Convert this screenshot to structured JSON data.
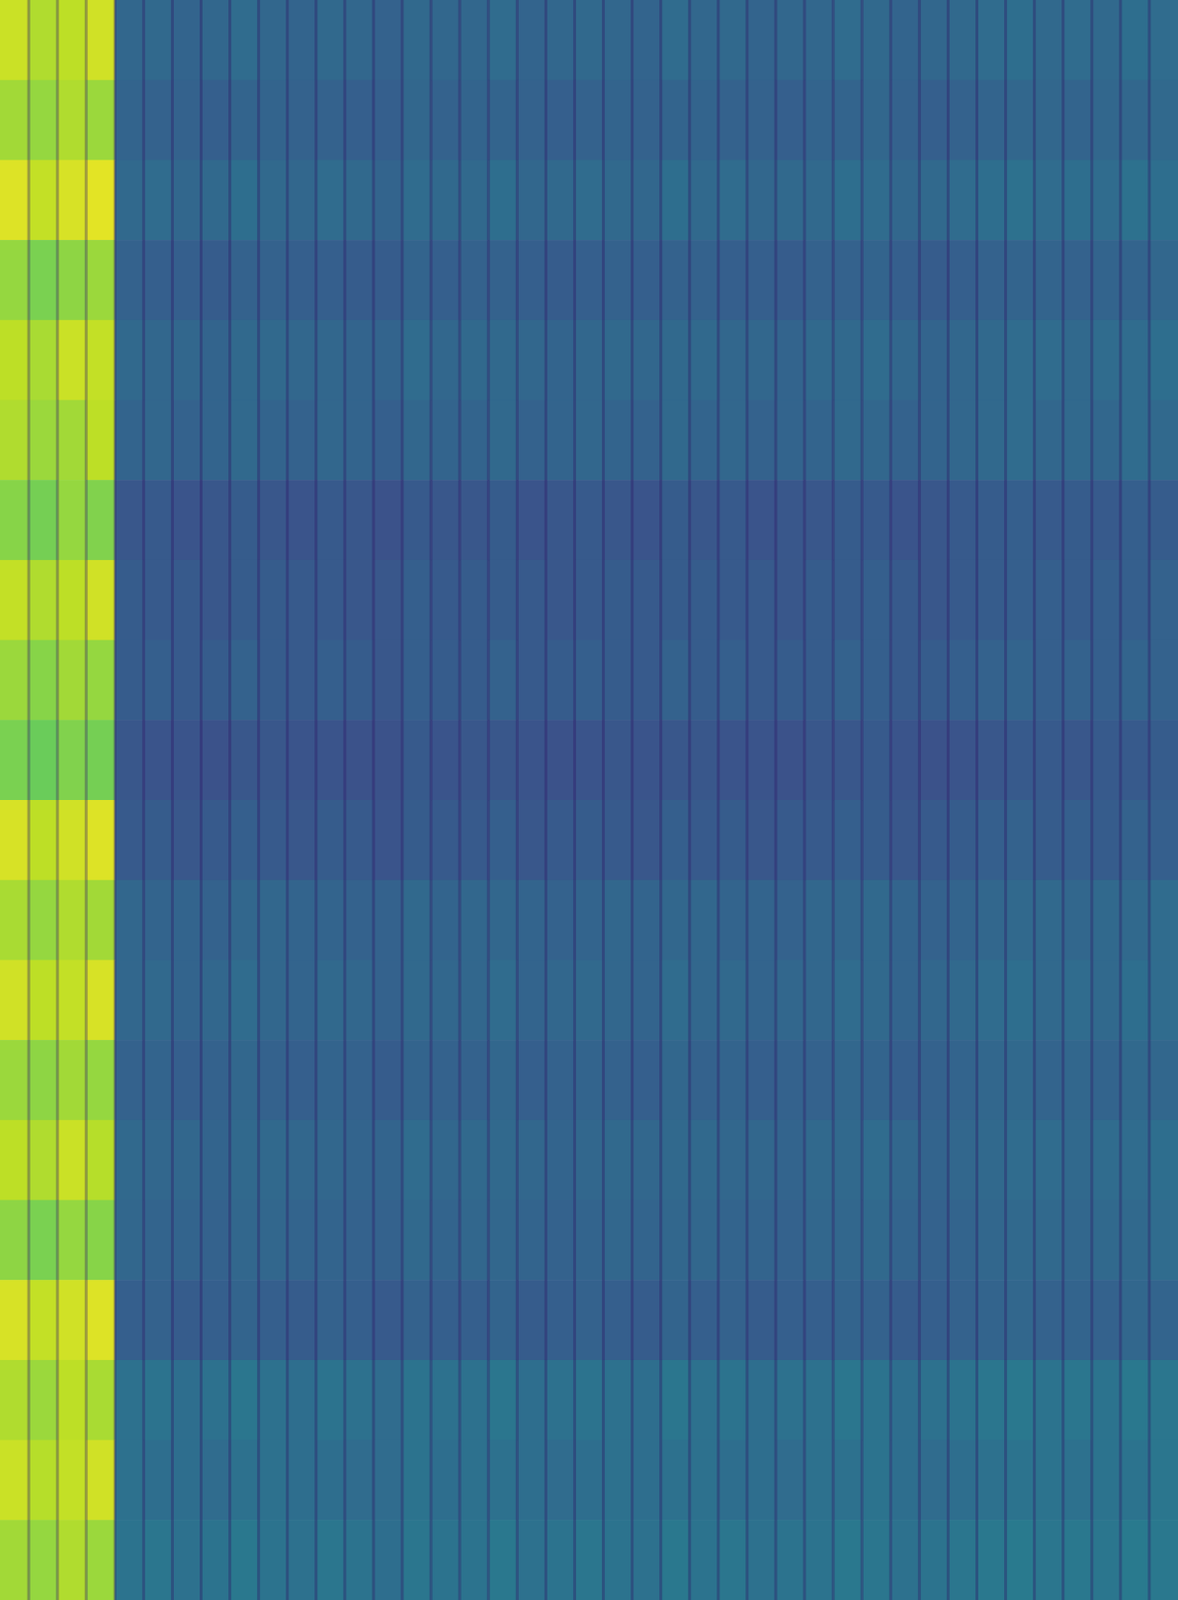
{
  "chart_data": {
    "type": "heatmap",
    "tick_labels": false,
    "zlim": [
      0,
      1
    ],
    "values": [
      [
        0.92,
        0.88,
        0.9,
        0.93,
        0.33,
        0.34,
        0.32,
        0.33,
        0.35,
        0.33,
        0.32,
        0.34,
        0.33,
        0.31,
        0.34,
        0.33,
        0.33,
        0.35,
        0.32,
        0.33,
        0.34,
        0.33,
        0.32,
        0.35,
        0.33,
        0.34,
        0.32,
        0.33,
        0.33,
        0.35,
        0.34,
        0.32,
        0.33,
        0.34,
        0.35,
        0.36,
        0.34,
        0.35,
        0.34,
        0.36,
        0.35
      ],
      [
        0.86,
        0.84,
        0.88,
        0.85,
        0.32,
        0.31,
        0.31,
        0.3,
        0.32,
        0.32,
        0.31,
        0.31,
        0.3,
        0.3,
        0.33,
        0.31,
        0.32,
        0.32,
        0.31,
        0.3,
        0.31,
        0.32,
        0.31,
        0.32,
        0.32,
        0.31,
        0.31,
        0.3,
        0.32,
        0.32,
        0.33,
        0.31,
        0.3,
        0.31,
        0.32,
        0.33,
        0.33,
        0.32,
        0.33,
        0.33,
        0.34
      ],
      [
        0.95,
        0.91,
        0.94,
        0.96,
        0.34,
        0.35,
        0.33,
        0.34,
        0.36,
        0.34,
        0.33,
        0.35,
        0.34,
        0.32,
        0.35,
        0.34,
        0.34,
        0.36,
        0.33,
        0.34,
        0.35,
        0.34,
        0.33,
        0.36,
        0.34,
        0.35,
        0.33,
        0.34,
        0.34,
        0.36,
        0.35,
        0.33,
        0.34,
        0.35,
        0.36,
        0.37,
        0.35,
        0.36,
        0.35,
        0.37,
        0.36
      ],
      [
        0.84,
        0.8,
        0.83,
        0.85,
        0.31,
        0.3,
        0.3,
        0.29,
        0.31,
        0.31,
        0.3,
        0.3,
        0.29,
        0.29,
        0.32,
        0.3,
        0.31,
        0.31,
        0.3,
        0.29,
        0.3,
        0.31,
        0.3,
        0.31,
        0.31,
        0.3,
        0.3,
        0.29,
        0.31,
        0.31,
        0.32,
        0.3,
        0.29,
        0.3,
        0.31,
        0.32,
        0.32,
        0.31,
        0.32,
        0.32,
        0.33
      ],
      [
        0.9,
        0.87,
        0.92,
        0.91,
        0.34,
        0.33,
        0.33,
        0.32,
        0.34,
        0.34,
        0.33,
        0.33,
        0.32,
        0.32,
        0.35,
        0.33,
        0.34,
        0.34,
        0.33,
        0.32,
        0.33,
        0.34,
        0.33,
        0.34,
        0.34,
        0.33,
        0.33,
        0.32,
        0.34,
        0.34,
        0.35,
        0.33,
        0.32,
        0.33,
        0.34,
        0.35,
        0.35,
        0.34,
        0.35,
        0.35,
        0.36
      ],
      [
        0.88,
        0.85,
        0.86,
        0.9,
        0.32,
        0.33,
        0.31,
        0.32,
        0.34,
        0.32,
        0.31,
        0.33,
        0.32,
        0.3,
        0.33,
        0.32,
        0.32,
        0.34,
        0.31,
        0.32,
        0.33,
        0.32,
        0.31,
        0.34,
        0.32,
        0.33,
        0.31,
        0.32,
        0.32,
        0.34,
        0.33,
        0.31,
        0.32,
        0.33,
        0.34,
        0.35,
        0.33,
        0.34,
        0.33,
        0.35,
        0.34
      ],
      [
        0.82,
        0.79,
        0.84,
        0.81,
        0.27,
        0.28,
        0.26,
        0.27,
        0.29,
        0.27,
        0.26,
        0.28,
        0.27,
        0.25,
        0.28,
        0.27,
        0.27,
        0.29,
        0.26,
        0.27,
        0.28,
        0.27,
        0.26,
        0.29,
        0.27,
        0.28,
        0.26,
        0.27,
        0.27,
        0.29,
        0.28,
        0.26,
        0.27,
        0.28,
        0.29,
        0.3,
        0.28,
        0.29,
        0.28,
        0.3,
        0.29
      ],
      [
        0.91,
        0.88,
        0.9,
        0.93,
        0.29,
        0.28,
        0.28,
        0.27,
        0.29,
        0.29,
        0.28,
        0.28,
        0.27,
        0.27,
        0.3,
        0.28,
        0.29,
        0.29,
        0.28,
        0.27,
        0.28,
        0.29,
        0.28,
        0.29,
        0.29,
        0.28,
        0.28,
        0.27,
        0.29,
        0.29,
        0.3,
        0.28,
        0.27,
        0.28,
        0.29,
        0.3,
        0.3,
        0.29,
        0.3,
        0.3,
        0.31
      ],
      [
        0.85,
        0.82,
        0.86,
        0.84,
        0.29,
        0.3,
        0.28,
        0.29,
        0.31,
        0.29,
        0.28,
        0.3,
        0.29,
        0.27,
        0.3,
        0.29,
        0.29,
        0.31,
        0.28,
        0.29,
        0.3,
        0.29,
        0.28,
        0.31,
        0.29,
        0.3,
        0.28,
        0.29,
        0.29,
        0.31,
        0.3,
        0.28,
        0.29,
        0.3,
        0.31,
        0.32,
        0.3,
        0.31,
        0.3,
        0.32,
        0.31
      ],
      [
        0.8,
        0.77,
        0.81,
        0.79,
        0.27,
        0.26,
        0.26,
        0.25,
        0.27,
        0.27,
        0.26,
        0.26,
        0.25,
        0.25,
        0.28,
        0.26,
        0.27,
        0.27,
        0.26,
        0.25,
        0.26,
        0.27,
        0.26,
        0.27,
        0.27,
        0.26,
        0.26,
        0.25,
        0.27,
        0.27,
        0.28,
        0.26,
        0.25,
        0.26,
        0.27,
        0.28,
        0.28,
        0.27,
        0.28,
        0.28,
        0.29
      ],
      [
        0.94,
        0.9,
        0.93,
        0.95,
        0.28,
        0.29,
        0.27,
        0.28,
        0.3,
        0.28,
        0.27,
        0.29,
        0.28,
        0.26,
        0.29,
        0.28,
        0.28,
        0.3,
        0.27,
        0.28,
        0.29,
        0.28,
        0.27,
        0.3,
        0.28,
        0.29,
        0.27,
        0.28,
        0.28,
        0.3,
        0.29,
        0.27,
        0.28,
        0.29,
        0.3,
        0.31,
        0.29,
        0.3,
        0.29,
        0.31,
        0.3
      ],
      [
        0.87,
        0.84,
        0.88,
        0.86,
        0.33,
        0.32,
        0.32,
        0.31,
        0.33,
        0.33,
        0.32,
        0.32,
        0.31,
        0.31,
        0.34,
        0.32,
        0.33,
        0.33,
        0.32,
        0.31,
        0.32,
        0.33,
        0.32,
        0.33,
        0.33,
        0.32,
        0.32,
        0.31,
        0.33,
        0.33,
        0.34,
        0.32,
        0.31,
        0.32,
        0.33,
        0.34,
        0.34,
        0.33,
        0.34,
        0.34,
        0.35
      ],
      [
        0.93,
        0.9,
        0.91,
        0.94,
        0.33,
        0.34,
        0.32,
        0.33,
        0.35,
        0.33,
        0.32,
        0.34,
        0.33,
        0.31,
        0.34,
        0.33,
        0.33,
        0.35,
        0.32,
        0.33,
        0.34,
        0.33,
        0.32,
        0.35,
        0.33,
        0.34,
        0.32,
        0.33,
        0.33,
        0.35,
        0.34,
        0.32,
        0.33,
        0.34,
        0.35,
        0.36,
        0.34,
        0.35,
        0.34,
        0.36,
        0.35
      ],
      [
        0.85,
        0.83,
        0.86,
        0.84,
        0.31,
        0.32,
        0.3,
        0.31,
        0.33,
        0.31,
        0.3,
        0.32,
        0.31,
        0.29,
        0.32,
        0.31,
        0.31,
        0.33,
        0.3,
        0.31,
        0.32,
        0.31,
        0.3,
        0.33,
        0.31,
        0.32,
        0.3,
        0.31,
        0.31,
        0.33,
        0.32,
        0.3,
        0.31,
        0.32,
        0.33,
        0.34,
        0.32,
        0.33,
        0.32,
        0.34,
        0.33
      ],
      [
        0.9,
        0.88,
        0.92,
        0.89,
        0.34,
        0.33,
        0.33,
        0.32,
        0.34,
        0.34,
        0.33,
        0.33,
        0.32,
        0.32,
        0.35,
        0.33,
        0.34,
        0.34,
        0.33,
        0.32,
        0.33,
        0.34,
        0.33,
        0.34,
        0.34,
        0.33,
        0.33,
        0.32,
        0.34,
        0.34,
        0.35,
        0.33,
        0.32,
        0.33,
        0.34,
        0.35,
        0.35,
        0.34,
        0.35,
        0.35,
        0.36
      ],
      [
        0.83,
        0.8,
        0.84,
        0.82,
        0.33,
        0.32,
        0.32,
        0.31,
        0.33,
        0.33,
        0.32,
        0.32,
        0.31,
        0.31,
        0.34,
        0.32,
        0.33,
        0.33,
        0.32,
        0.31,
        0.32,
        0.33,
        0.32,
        0.33,
        0.33,
        0.32,
        0.32,
        0.31,
        0.33,
        0.33,
        0.34,
        0.32,
        0.31,
        0.32,
        0.33,
        0.34,
        0.34,
        0.33,
        0.34,
        0.34,
        0.35
      ],
      [
        0.94,
        0.91,
        0.93,
        0.95,
        0.3,
        0.31,
        0.29,
        0.3,
        0.32,
        0.3,
        0.29,
        0.31,
        0.3,
        0.28,
        0.31,
        0.3,
        0.3,
        0.32,
        0.29,
        0.3,
        0.31,
        0.3,
        0.29,
        0.32,
        0.3,
        0.31,
        0.29,
        0.3,
        0.3,
        0.32,
        0.31,
        0.29,
        0.3,
        0.31,
        0.32,
        0.33,
        0.31,
        0.32,
        0.31,
        0.33,
        0.32
      ],
      [
        0.88,
        0.85,
        0.9,
        0.87,
        0.37,
        0.38,
        0.36,
        0.37,
        0.39,
        0.37,
        0.36,
        0.38,
        0.37,
        0.35,
        0.38,
        0.37,
        0.37,
        0.39,
        0.36,
        0.37,
        0.38,
        0.37,
        0.36,
        0.39,
        0.37,
        0.38,
        0.36,
        0.37,
        0.37,
        0.39,
        0.38,
        0.36,
        0.37,
        0.38,
        0.39,
        0.4,
        0.38,
        0.39,
        0.38,
        0.4,
        0.39
      ],
      [
        0.92,
        0.89,
        0.91,
        0.93,
        0.37,
        0.36,
        0.36,
        0.35,
        0.37,
        0.37,
        0.36,
        0.36,
        0.35,
        0.35,
        0.38,
        0.36,
        0.37,
        0.37,
        0.36,
        0.35,
        0.36,
        0.37,
        0.36,
        0.37,
        0.37,
        0.36,
        0.36,
        0.35,
        0.37,
        0.37,
        0.38,
        0.36,
        0.35,
        0.36,
        0.37,
        0.38,
        0.38,
        0.37,
        0.38,
        0.38,
        0.39
      ],
      [
        0.86,
        0.84,
        0.88,
        0.85,
        0.38,
        0.39,
        0.37,
        0.38,
        0.4,
        0.38,
        0.37,
        0.39,
        0.38,
        0.36,
        0.39,
        0.38,
        0.38,
        0.4,
        0.37,
        0.38,
        0.39,
        0.38,
        0.37,
        0.4,
        0.38,
        0.39,
        0.37,
        0.38,
        0.38,
        0.4,
        0.39,
        0.37,
        0.38,
        0.39,
        0.4,
        0.41,
        0.39,
        0.4,
        0.39,
        0.41,
        0.4
      ]
    ]
  }
}
